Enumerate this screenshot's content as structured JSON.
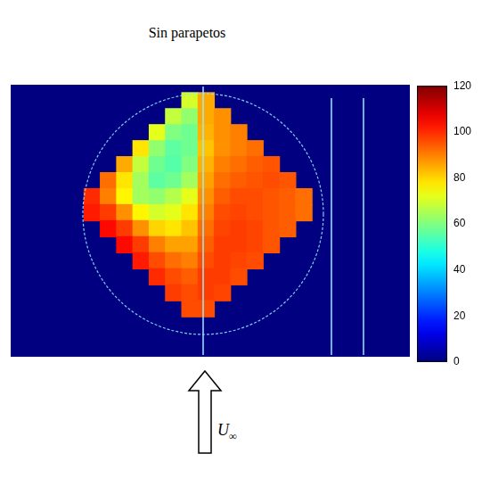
{
  "chart_data": {
    "type": "heatmap",
    "title": "Sin parapetos",
    "annotations": [
      "U∞"
    ],
    "tick_labels": false,
    "xlim": [
      -5,
      19.5
    ],
    "ylim": [
      -1,
      16
    ],
    "cells": [
      [
        null,
        null,
        null,
        null,
        null,
        null,
        70,
        85,
        null,
        null,
        null,
        null,
        null,
        null
      ],
      [
        null,
        null,
        null,
        null,
        null,
        68,
        62,
        85,
        88,
        null,
        null,
        null,
        null,
        null
      ],
      [
        null,
        null,
        null,
        null,
        72,
        60,
        58,
        84,
        88,
        90,
        null,
        null,
        null,
        null
      ],
      [
        null,
        null,
        null,
        78,
        62,
        56,
        58,
        82,
        88,
        90,
        92,
        null,
        null,
        null
      ],
      [
        null,
        null,
        85,
        68,
        58,
        55,
        60,
        84,
        90,
        92,
        94,
        95,
        null,
        null
      ],
      [
        null,
        92,
        78,
        64,
        56,
        58,
        64,
        86,
        92,
        94,
        95,
        96,
        95,
        null
      ],
      [
        100,
        90,
        76,
        64,
        62,
        66,
        72,
        88,
        94,
        96,
        96,
        95,
        94,
        92
      ],
      [
        102,
        98,
        88,
        76,
        70,
        72,
        78,
        90,
        96,
        97,
        96,
        95,
        94,
        92
      ],
      [
        null,
        104,
        98,
        88,
        80,
        78,
        82,
        92,
        97,
        98,
        97,
        95,
        94,
        null
      ],
      [
        null,
        null,
        104,
        98,
        90,
        86,
        86,
        94,
        98,
        98,
        97,
        95,
        null,
        null
      ],
      [
        null,
        null,
        null,
        102,
        96,
        92,
        90,
        96,
        98,
        97,
        96,
        null,
        null,
        null
      ],
      [
        null,
        null,
        null,
        null,
        100,
        96,
        94,
        98,
        98,
        96,
        null,
        null,
        null,
        null
      ],
      [
        null,
        null,
        null,
        null,
        null,
        98,
        96,
        98,
        97,
        null,
        null,
        null,
        null,
        null
      ],
      [
        null,
        null,
        null,
        null,
        null,
        null,
        96,
        96,
        null,
        null,
        null,
        null,
        null,
        null
      ]
    ],
    "colorbar_range": [
      0,
      120
    ],
    "colorbar_ticks": [
      0,
      20,
      40,
      60,
      80,
      100,
      120
    ]
  }
}
